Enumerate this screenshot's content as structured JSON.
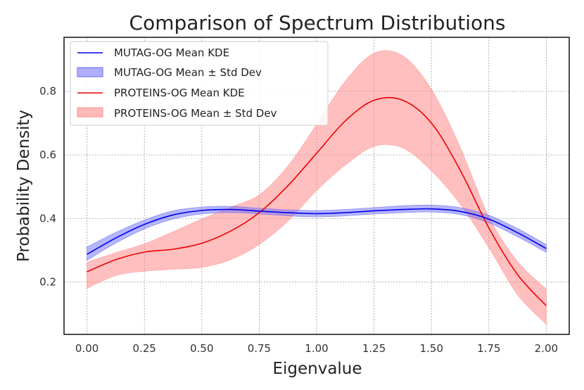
{
  "chart_data": {
    "type": "line",
    "title": "Comparison of Spectrum Distributions",
    "xlabel": "Eigenvalue",
    "ylabel": "Probability Density",
    "xlim": [
      -0.1,
      2.1
    ],
    "ylim": [
      0.035,
      0.97
    ],
    "xticks": [
      0.0,
      0.25,
      0.5,
      0.75,
      1.0,
      1.25,
      1.5,
      1.75,
      2.0
    ],
    "xtick_labels": [
      "0.00",
      "0.25",
      "0.50",
      "0.75",
      "1.00",
      "1.25",
      "1.50",
      "1.75",
      "2.00"
    ],
    "yticks": [
      0.2,
      0.4,
      0.6,
      0.8
    ],
    "ytick_labels": [
      "0.2",
      "0.4",
      "0.6",
      "0.8"
    ],
    "grid": true,
    "legend_position": "top-left",
    "x": [
      0.0,
      0.125,
      0.25,
      0.375,
      0.5,
      0.625,
      0.75,
      0.875,
      1.0,
      1.125,
      1.25,
      1.375,
      1.5,
      1.625,
      1.75,
      1.875,
      2.0
    ],
    "series": [
      {
        "name": "MUTAG-OG",
        "mean_label": "MUTAG-OG Mean KDE",
        "band_label": "MUTAG-OG Mean ± Std Dev",
        "line_color": "#0000ee",
        "band_color": "#6b6bf5",
        "mean": [
          0.287,
          0.338,
          0.381,
          0.411,
          0.425,
          0.428,
          0.423,
          0.418,
          0.415,
          0.418,
          0.424,
          0.428,
          0.43,
          0.422,
          0.398,
          0.355,
          0.305
        ],
        "lower": [
          0.268,
          0.322,
          0.367,
          0.398,
          0.414,
          0.418,
          0.414,
          0.408,
          0.405,
          0.408,
          0.414,
          0.418,
          0.42,
          0.412,
          0.386,
          0.342,
          0.293
        ],
        "upper": [
          0.31,
          0.356,
          0.395,
          0.424,
          0.436,
          0.438,
          0.432,
          0.427,
          0.425,
          0.428,
          0.434,
          0.44,
          0.442,
          0.434,
          0.41,
          0.368,
          0.318
        ]
      },
      {
        "name": "PROTEINS-OG",
        "mean_label": "PROTEINS-OG Mean KDE",
        "band_label": "PROTEINS-OG Mean ± Std Dev",
        "line_color": "#ee0000",
        "band_color": "#ff8a8a",
        "mean": [
          0.232,
          0.27,
          0.294,
          0.303,
          0.322,
          0.36,
          0.418,
          0.503,
          0.605,
          0.707,
          0.772,
          0.772,
          0.7,
          0.552,
          0.37,
          0.223,
          0.125
        ],
        "lower": [
          0.18,
          0.22,
          0.234,
          0.24,
          0.246,
          0.27,
          0.318,
          0.392,
          0.488,
          0.568,
          0.627,
          0.622,
          0.55,
          0.445,
          0.308,
          0.16,
          0.067
        ],
        "upper": [
          0.262,
          0.292,
          0.32,
          0.358,
          0.398,
          0.435,
          0.474,
          0.565,
          0.696,
          0.832,
          0.92,
          0.912,
          0.806,
          0.624,
          0.405,
          0.264,
          0.178
        ]
      }
    ]
  }
}
